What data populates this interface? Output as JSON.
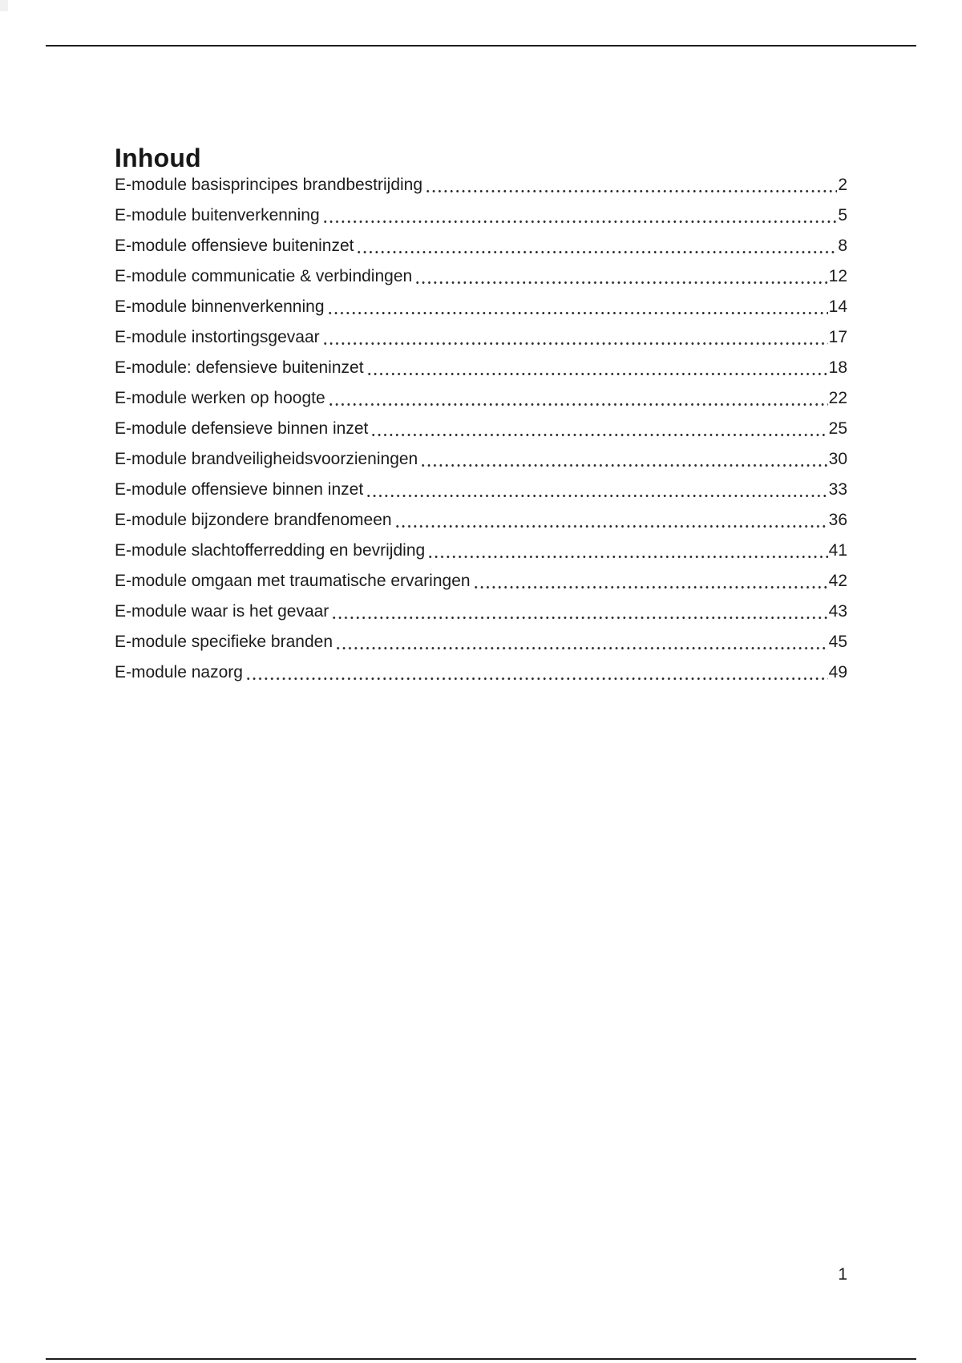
{
  "colors": {
    "background": "#ffffff",
    "text": "#1c1c1c",
    "rule": "#1d1d1d"
  },
  "page": {
    "heading": "Inhoud",
    "footer_page_number": "1"
  },
  "toc": {
    "entries": [
      {
        "title": "E-module basisprincipes brandbestrijding",
        "page": "2"
      },
      {
        "title": "E-module buitenverkenning",
        "page": "5"
      },
      {
        "title": "E-module offensieve buiteninzet",
        "page": "8"
      },
      {
        "title": "E-module communicatie & verbindingen",
        "page": "12"
      },
      {
        "title": "E-module binnenverkenning",
        "page": "14"
      },
      {
        "title": "E-module instortingsgevaar",
        "page": "17"
      },
      {
        "title": "E-module: defensieve buiteninzet",
        "page": "18"
      },
      {
        "title": "E-module werken op hoogte",
        "page": "22"
      },
      {
        "title": "E-module defensieve binnen inzet",
        "page": "25"
      },
      {
        "title": "E-module brandveiligheidsvoorzieningen",
        "page": "30"
      },
      {
        "title": "E-module offensieve binnen inzet",
        "page": "33"
      },
      {
        "title": "E-module bijzondere brandfenomeen",
        "page": "36"
      },
      {
        "title": "E-module slachtofferredding en bevrijding",
        "page": "41"
      },
      {
        "title": "E-module omgaan met traumatische ervaringen",
        "page": "42"
      },
      {
        "title": "E-module waar is het gevaar",
        "page": "43"
      },
      {
        "title": "E-module specifieke branden",
        "page": "45"
      },
      {
        "title": "E-module nazorg",
        "page": "49"
      }
    ]
  }
}
